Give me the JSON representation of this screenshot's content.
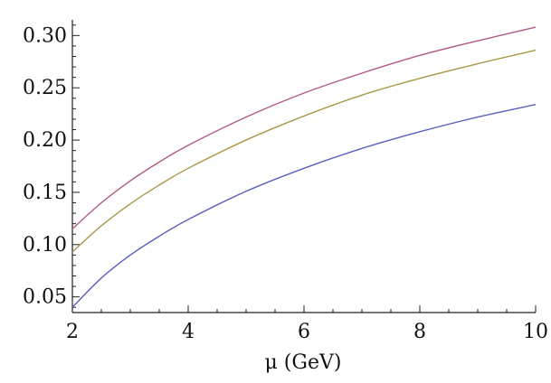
{
  "chart_data": {
    "type": "line",
    "title": "",
    "xlabel": "μ (GeV)",
    "ylabel": "",
    "xlim": [
      2,
      10
    ],
    "ylim": [
      0.035,
      0.315
    ],
    "x_ticks": [
      "2",
      "4",
      "6",
      "8",
      "10"
    ],
    "y_ticks": [
      "0.05",
      "0.10",
      "0.15",
      "0.20",
      "0.25",
      "0.30"
    ],
    "grid": false,
    "x": [
      2,
      2.5,
      3,
      3.5,
      4,
      5,
      6,
      7,
      8,
      9,
      10
    ],
    "series": [
      {
        "color": "#b05a8a",
        "values": [
          0.115,
          0.14,
          0.161,
          0.179,
          0.195,
          0.222,
          0.245,
          0.264,
          0.281,
          0.295,
          0.308
        ]
      },
      {
        "color": "#a8984a",
        "values": [
          0.093,
          0.118,
          0.139,
          0.157,
          0.173,
          0.2,
          0.223,
          0.243,
          0.259,
          0.273,
          0.286
        ]
      },
      {
        "color": "#5b5fc0",
        "values": [
          0.04,
          0.068,
          0.09,
          0.108,
          0.124,
          0.151,
          0.173,
          0.192,
          0.208,
          0.222,
          0.234
        ]
      }
    ]
  }
}
